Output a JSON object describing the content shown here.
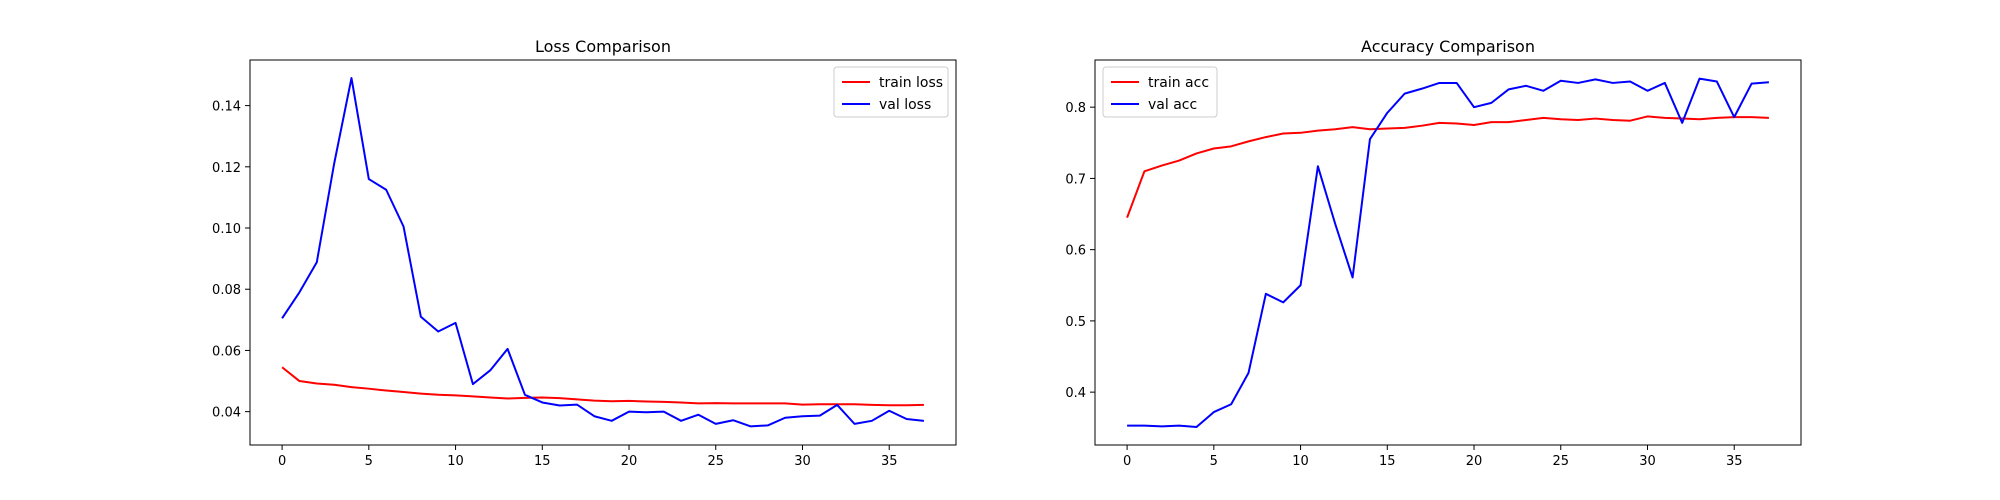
{
  "chart_data": [
    {
      "type": "line",
      "title": "Loss Comparison",
      "xlabel": "",
      "ylabel": "",
      "xlim": [
        -1.85,
        38.85
      ],
      "ylim": [
        0.0291,
        0.1549
      ],
      "xticks": [
        0,
        5,
        10,
        15,
        20,
        25,
        30,
        35
      ],
      "yticks": [
        0.04,
        0.06,
        0.08,
        0.1,
        0.12,
        0.14
      ],
      "ytick_format": 2,
      "legend_position": "top-right",
      "x": [
        0,
        1,
        2,
        3,
        4,
        5,
        6,
        7,
        8,
        9,
        10,
        11,
        12,
        13,
        14,
        15,
        16,
        17,
        18,
        19,
        20,
        21,
        22,
        23,
        24,
        25,
        26,
        27,
        28,
        29,
        30,
        31,
        32,
        33,
        34,
        35,
        36,
        37
      ],
      "series": [
        {
          "name": "train loss",
          "color": "#ff0000",
          "values": [
            0.0545,
            0.05,
            0.0492,
            0.0488,
            0.048,
            0.0475,
            0.0469,
            0.0464,
            0.0459,
            0.0455,
            0.0453,
            0.045,
            0.0446,
            0.0443,
            0.0445,
            0.0446,
            0.0444,
            0.044,
            0.0436,
            0.0434,
            0.0435,
            0.0433,
            0.0432,
            0.043,
            0.0427,
            0.0428,
            0.0427,
            0.0427,
            0.0427,
            0.0427,
            0.0423,
            0.0424,
            0.0424,
            0.0424,
            0.0422,
            0.0421,
            0.0421,
            0.0422
          ]
        },
        {
          "name": "val loss",
          "color": "#0000ff",
          "values": [
            0.0705,
            0.079,
            0.0888,
            0.121,
            0.149,
            0.116,
            0.1125,
            0.1005,
            0.071,
            0.0662,
            0.069,
            0.049,
            0.0535,
            0.0605,
            0.0455,
            0.043,
            0.042,
            0.0423,
            0.0385,
            0.037,
            0.04,
            0.0398,
            0.04,
            0.037,
            0.039,
            0.036,
            0.0372,
            0.0352,
            0.0355,
            0.038,
            0.0385,
            0.0387,
            0.0422,
            0.036,
            0.037,
            0.0403,
            0.0376,
            0.037
          ]
        }
      ]
    },
    {
      "type": "line",
      "title": "Accuracy Comparison",
      "xlabel": "",
      "ylabel": "",
      "xlim": [
        -1.85,
        38.85
      ],
      "ylim": [
        0.3258,
        0.8662
      ],
      "xticks": [
        0,
        5,
        10,
        15,
        20,
        25,
        30,
        35
      ],
      "yticks": [
        0.4,
        0.5,
        0.6,
        0.7,
        0.8
      ],
      "ytick_format": 1,
      "legend_position": "top-left",
      "x": [
        0,
        1,
        2,
        3,
        4,
        5,
        6,
        7,
        8,
        9,
        10,
        11,
        12,
        13,
        14,
        15,
        16,
        17,
        18,
        19,
        20,
        21,
        22,
        23,
        24,
        25,
        26,
        27,
        28,
        29,
        30,
        31,
        32,
        33,
        34,
        35,
        36,
        37
      ],
      "series": [
        {
          "name": "train acc",
          "color": "#ff0000",
          "values": [
            0.645,
            0.71,
            0.718,
            0.725,
            0.735,
            0.742,
            0.745,
            0.752,
            0.758,
            0.763,
            0.764,
            0.767,
            0.769,
            0.772,
            0.769,
            0.77,
            0.771,
            0.774,
            0.778,
            0.777,
            0.775,
            0.779,
            0.779,
            0.782,
            0.785,
            0.783,
            0.782,
            0.784,
            0.782,
            0.781,
            0.787,
            0.785,
            0.784,
            0.783,
            0.785,
            0.786,
            0.786,
            0.785
          ]
        },
        {
          "name": "val acc",
          "color": "#0000ff",
          "values": [
            0.353,
            0.353,
            0.352,
            0.353,
            0.351,
            0.372,
            0.383,
            0.427,
            0.538,
            0.526,
            0.55,
            0.717,
            0.636,
            0.561,
            0.755,
            0.792,
            0.819,
            0.826,
            0.834,
            0.834,
            0.8,
            0.806,
            0.825,
            0.83,
            0.823,
            0.837,
            0.834,
            0.839,
            0.834,
            0.836,
            0.823,
            0.834,
            0.778,
            0.84,
            0.836,
            0.786,
            0.833,
            0.835
          ]
        }
      ]
    }
  ]
}
